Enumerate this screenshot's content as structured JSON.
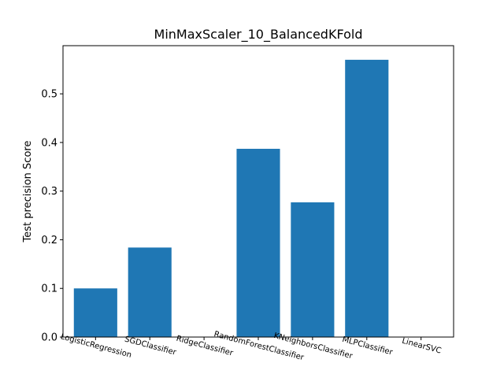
{
  "chart_data": {
    "type": "bar",
    "title": "MinMaxScaler_10_BalancedKFold",
    "xlabel": "",
    "ylabel": "Test precision Score",
    "categories": [
      "LogisticRegression",
      "SGDClassifier",
      "RidgeClassifier",
      "RandomForestClassifier",
      "KNeighborsClassifier",
      "MLPClassifier",
      "LinearSVC"
    ],
    "values": [
      0.1,
      0.184,
      0.0,
      0.387,
      0.277,
      0.57,
      0.0
    ],
    "ylim": [
      0,
      0.599
    ],
    "yticks": [
      0.0,
      0.1,
      0.2,
      0.3,
      0.4,
      0.5
    ],
    "ytick_labels": [
      "0.0",
      "0.1",
      "0.2",
      "0.3",
      "0.4",
      "0.5"
    ],
    "bar_color": "#1f77b4",
    "grid": false,
    "legend": "none"
  }
}
